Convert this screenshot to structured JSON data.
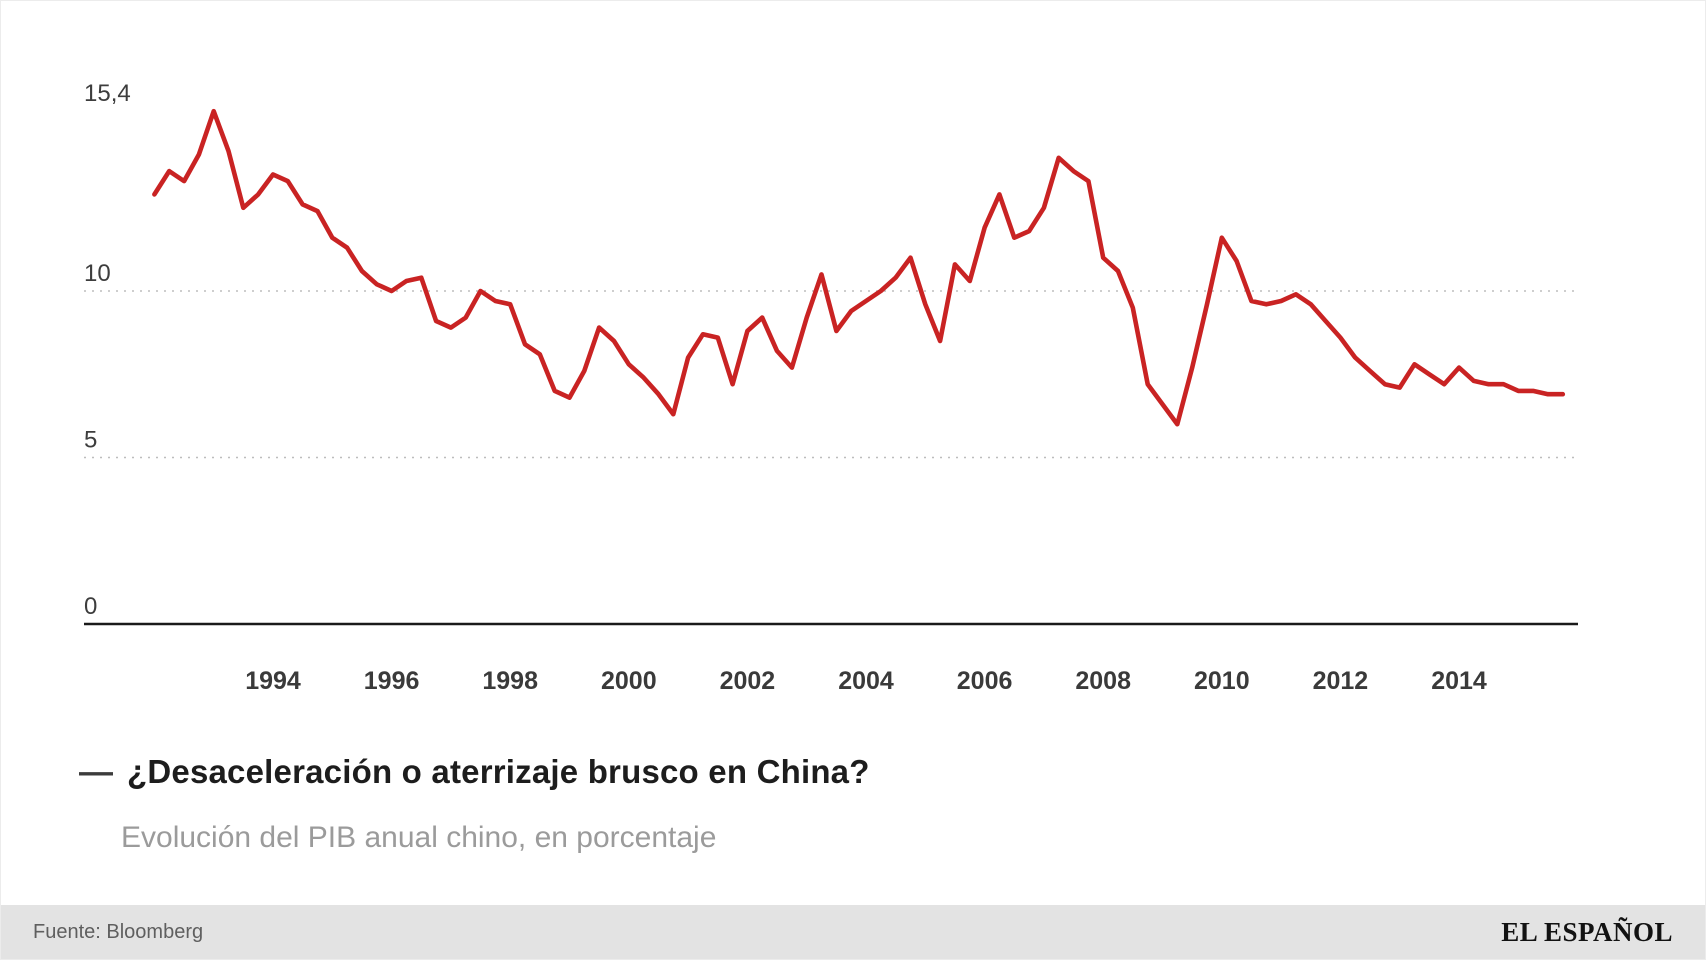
{
  "chart_data": {
    "type": "line",
    "title": "¿Desaceleración o aterrizaje brusco en China?",
    "title_dash": "—",
    "subtitle": "Evolución del PIB anual chino, en porcentaje",
    "series": [
      {
        "name": "PIB anual chino (%)",
        "color": "#c92323",
        "x_start_year": 1992,
        "points_per_year": 4,
        "values": [
          12.9,
          13.6,
          13.3,
          14.1,
          15.4,
          14.2,
          12.5,
          12.9,
          13.5,
          13.3,
          12.6,
          12.4,
          11.6,
          11.3,
          10.6,
          10.2,
          10.0,
          10.3,
          10.4,
          9.1,
          8.9,
          9.2,
          10.0,
          9.7,
          9.6,
          8.4,
          8.1,
          7.0,
          6.8,
          7.6,
          8.9,
          8.5,
          7.8,
          7.4,
          6.9,
          6.3,
          8.0,
          8.7,
          8.6,
          7.2,
          8.8,
          9.2,
          8.2,
          7.7,
          9.2,
          10.5,
          8.8,
          9.4,
          9.7,
          10.0,
          10.4,
          11.0,
          9.6,
          8.5,
          10.8,
          10.3,
          11.9,
          12.9,
          11.6,
          11.8,
          12.5,
          14.0,
          13.6,
          13.3,
          11.0,
          10.6,
          9.5,
          7.2,
          6.6,
          6.0,
          7.7,
          9.6,
          11.6,
          10.9,
          9.7,
          9.6,
          9.7,
          9.9,
          9.6,
          9.1,
          8.6,
          8.0,
          7.6,
          7.2,
          7.1,
          7.8,
          7.5,
          7.2,
          7.7,
          7.3,
          7.2,
          7.2,
          7.0,
          7.0,
          6.9,
          6.9
        ]
      }
    ],
    "yticks": [
      {
        "value": 15.4,
        "label": "15,4"
      },
      {
        "value": 10,
        "label": "10"
      },
      {
        "value": 5,
        "label": "5"
      },
      {
        "value": 0,
        "label": "0"
      }
    ],
    "grid_values": [
      10,
      5
    ],
    "xticks": [
      {
        "value": 1994,
        "label": "1994"
      },
      {
        "value": 1996,
        "label": "1996"
      },
      {
        "value": 1998,
        "label": "1998"
      },
      {
        "value": 2000,
        "label": "2000"
      },
      {
        "value": 2002,
        "label": "2002"
      },
      {
        "value": 2004,
        "label": "2004"
      },
      {
        "value": 2006,
        "label": "2006"
      },
      {
        "value": 2008,
        "label": "2008"
      },
      {
        "value": 2010,
        "label": "2010"
      },
      {
        "value": 2012,
        "label": "2012"
      },
      {
        "value": 2014,
        "label": "2014"
      },
      {
        "value": 2016,
        "label": ""
      }
    ],
    "ylim": [
      0,
      16.5
    ],
    "xlim": [
      1991.8,
      2016.2
    ],
    "grid": "dotted horizontal lines at 5 and 10, solid baseline at 0",
    "legend_position": "title-dash below chart"
  },
  "footer": {
    "source": "Fuente: Bloomberg",
    "brand": "EL ESPAÑOL"
  }
}
